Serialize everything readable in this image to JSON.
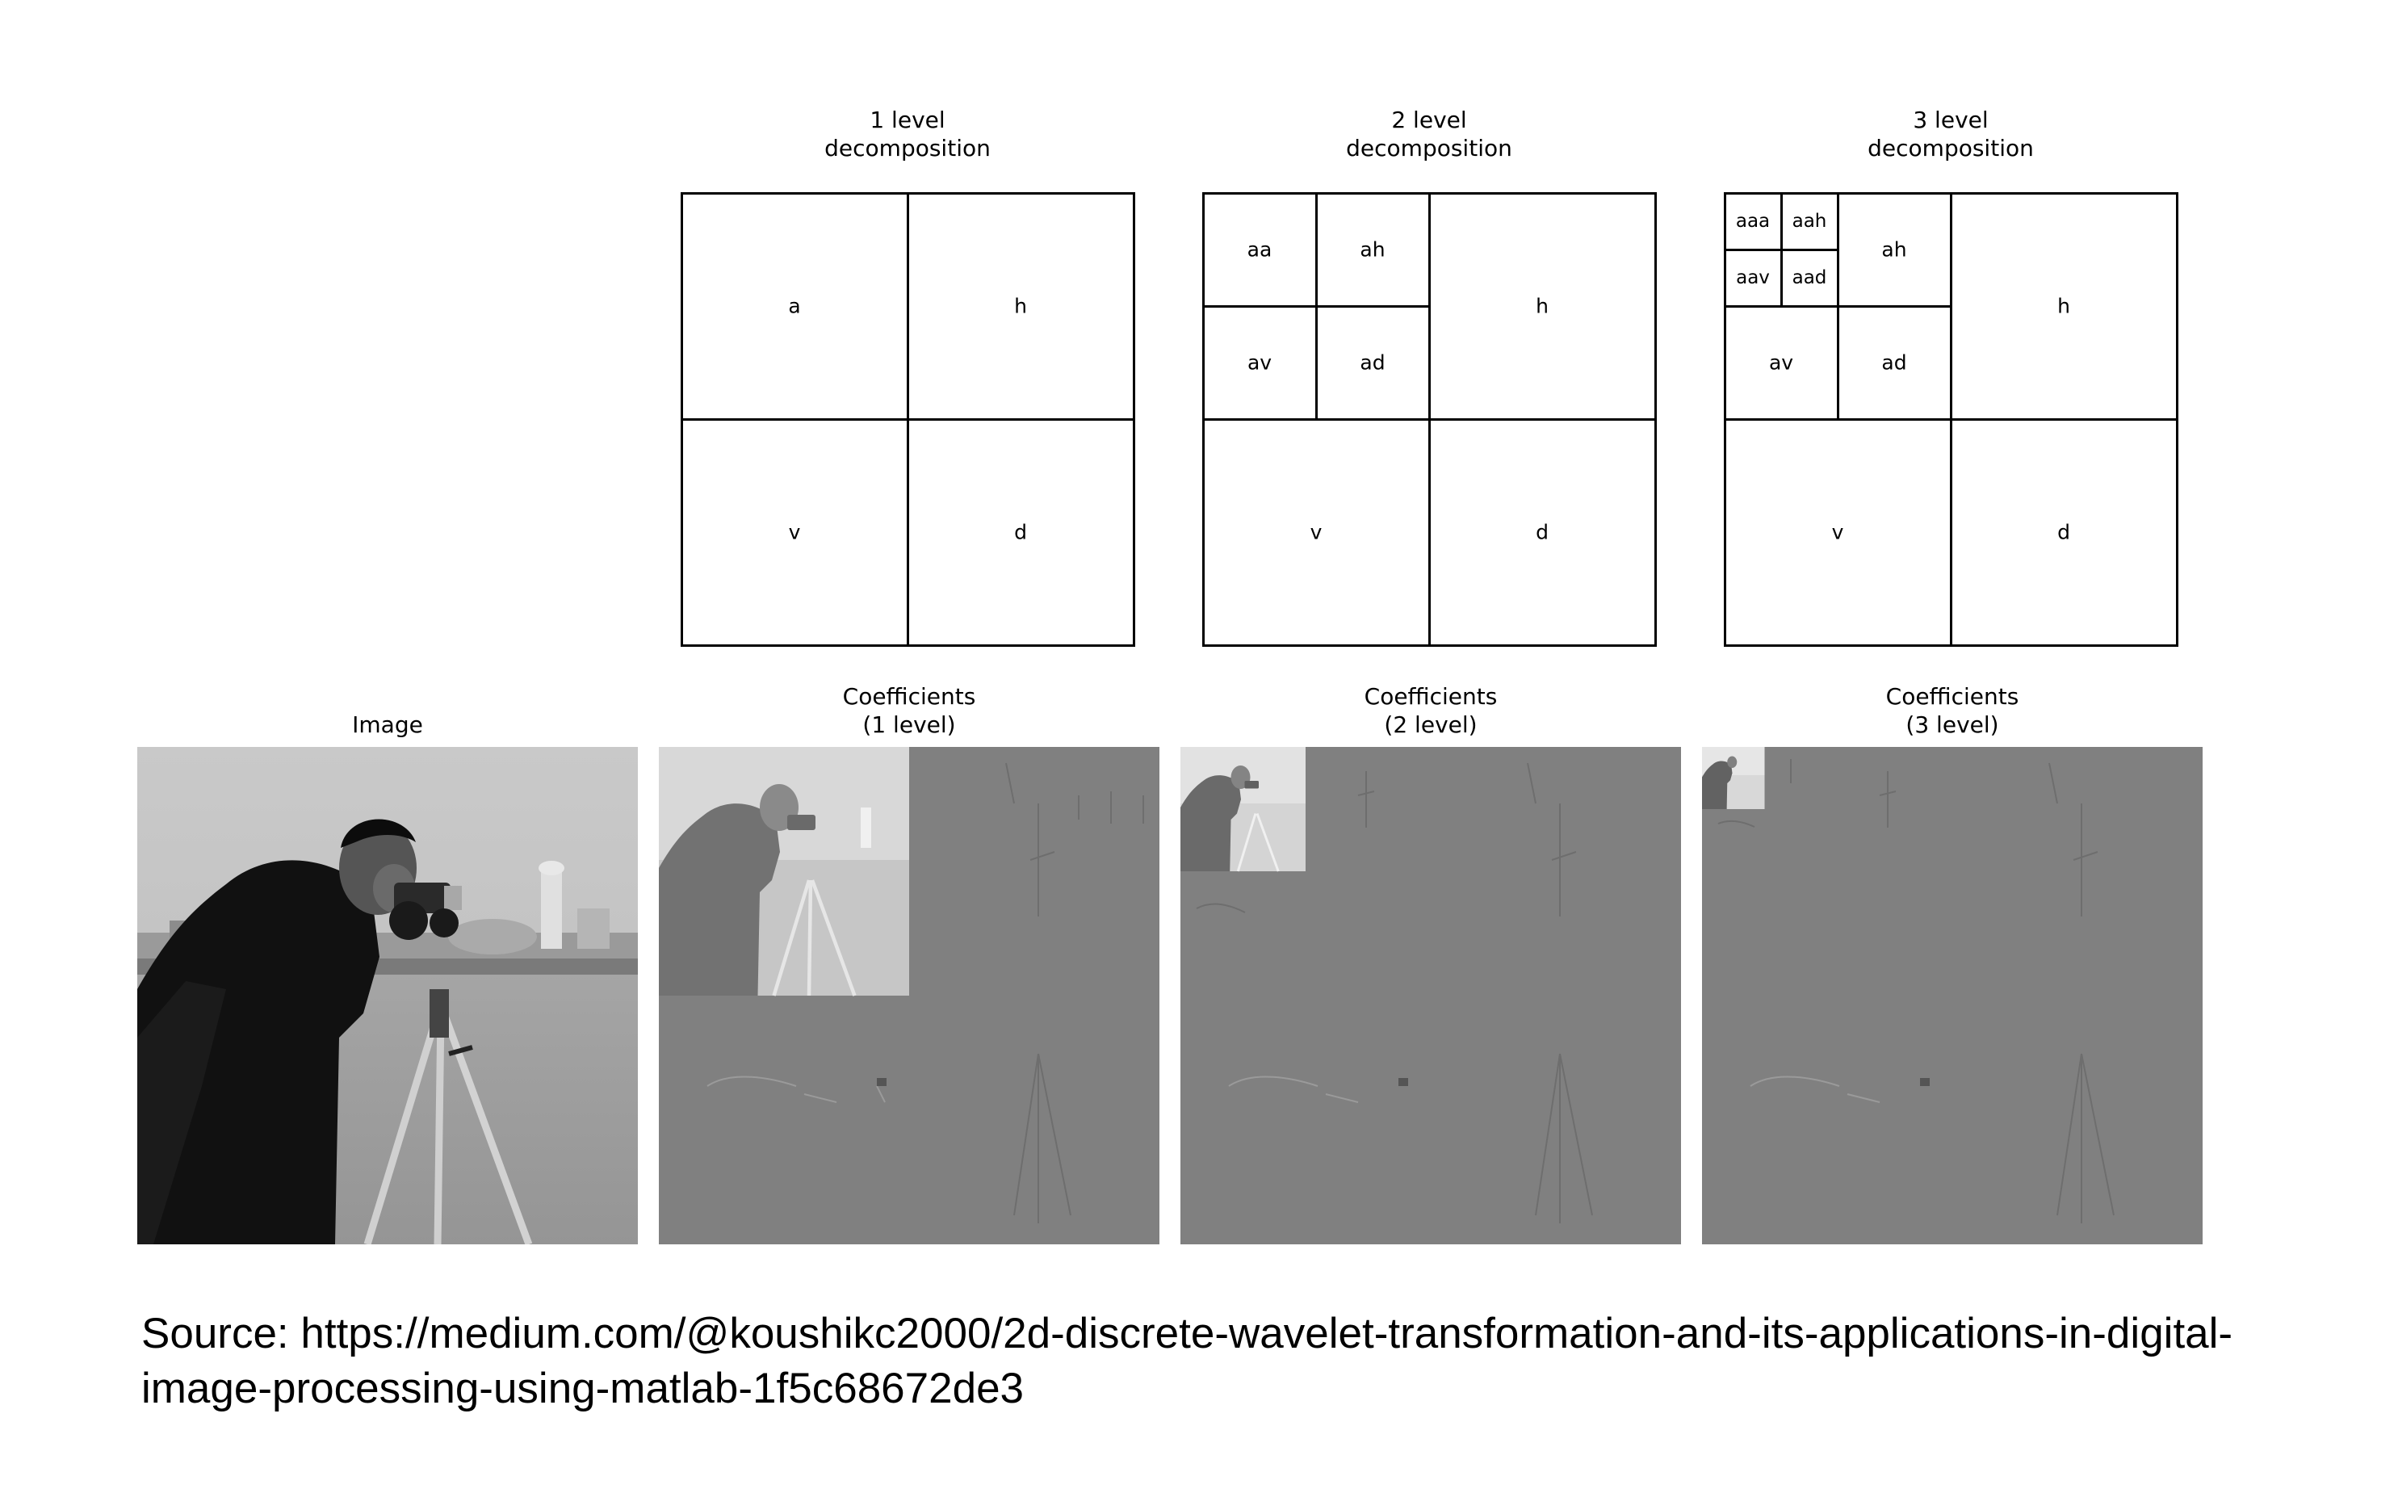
{
  "decomposition_titles": {
    "level1": "1 level\ndecomposition",
    "level2": "2 level\ndecomposition",
    "level3": "3 level\ndecomposition"
  },
  "subband_labels": {
    "a": "a",
    "h": "h",
    "v": "v",
    "d": "d",
    "aa": "aa",
    "ah": "ah",
    "av": "av",
    "ad": "ad",
    "aaa": "aaa",
    "aah": "aah",
    "aav": "aav",
    "aad": "aad"
  },
  "panel_titles": {
    "image": "Image",
    "coef1": "Coefficients\n(1 level)",
    "coef2": "Coefficients\n(2 level)",
    "coef3": "Coefficients\n(3 level)"
  },
  "source": "Source: https://medium.com/@koushikc2000/2d-discrete-wavelet-transformation-and-its-applications-in-digital-image-processing-using-matlab-1f5c68672de3",
  "colors": {
    "line": "#000000",
    "detail_gray": "#808080",
    "background": "#ffffff"
  }
}
